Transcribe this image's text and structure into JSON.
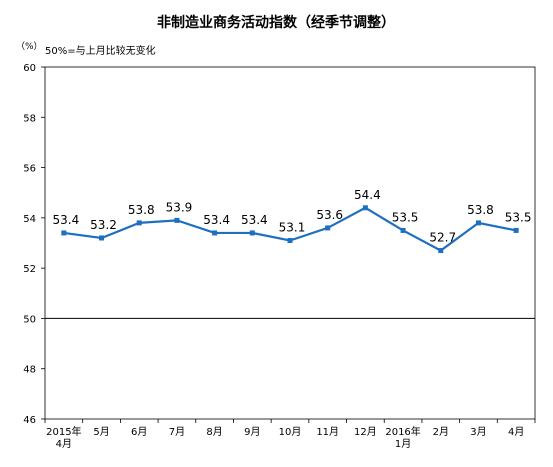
{
  "chart_data": {
    "type": "line",
    "title": "非制造业商务活动指数（经季节调整）",
    "unit_label": "（%）",
    "note": "50%=与上月比较无变化",
    "ylim": [
      46,
      60
    ],
    "yticks": [
      "60",
      "58",
      "56",
      "54",
      "52",
      "50",
      "48",
      "46"
    ],
    "reference_line": 50,
    "categories": [
      [
        "2015年",
        "4月"
      ],
      [
        "5月"
      ],
      [
        "6月"
      ],
      [
        "7月"
      ],
      [
        "8月"
      ],
      [
        "9月"
      ],
      [
        "10月"
      ],
      [
        "11月"
      ],
      [
        "12月"
      ],
      [
        "2016年",
        "1月"
      ],
      [
        "2月"
      ],
      [
        "3月"
      ],
      [
        "4月"
      ]
    ],
    "values": [
      53.4,
      53.2,
      53.8,
      53.9,
      53.4,
      53.4,
      53.1,
      53.6,
      54.4,
      53.5,
      52.7,
      53.8,
      53.5
    ],
    "labels": [
      "53.4",
      "53.2",
      "53.8",
      "53.9",
      "53.4",
      "53.4",
      "53.1",
      "53.6",
      "54.4",
      "53.5",
      "52.7",
      "53.8",
      "53.5"
    ],
    "line_color": "#1F6FBF",
    "grid": false
  }
}
